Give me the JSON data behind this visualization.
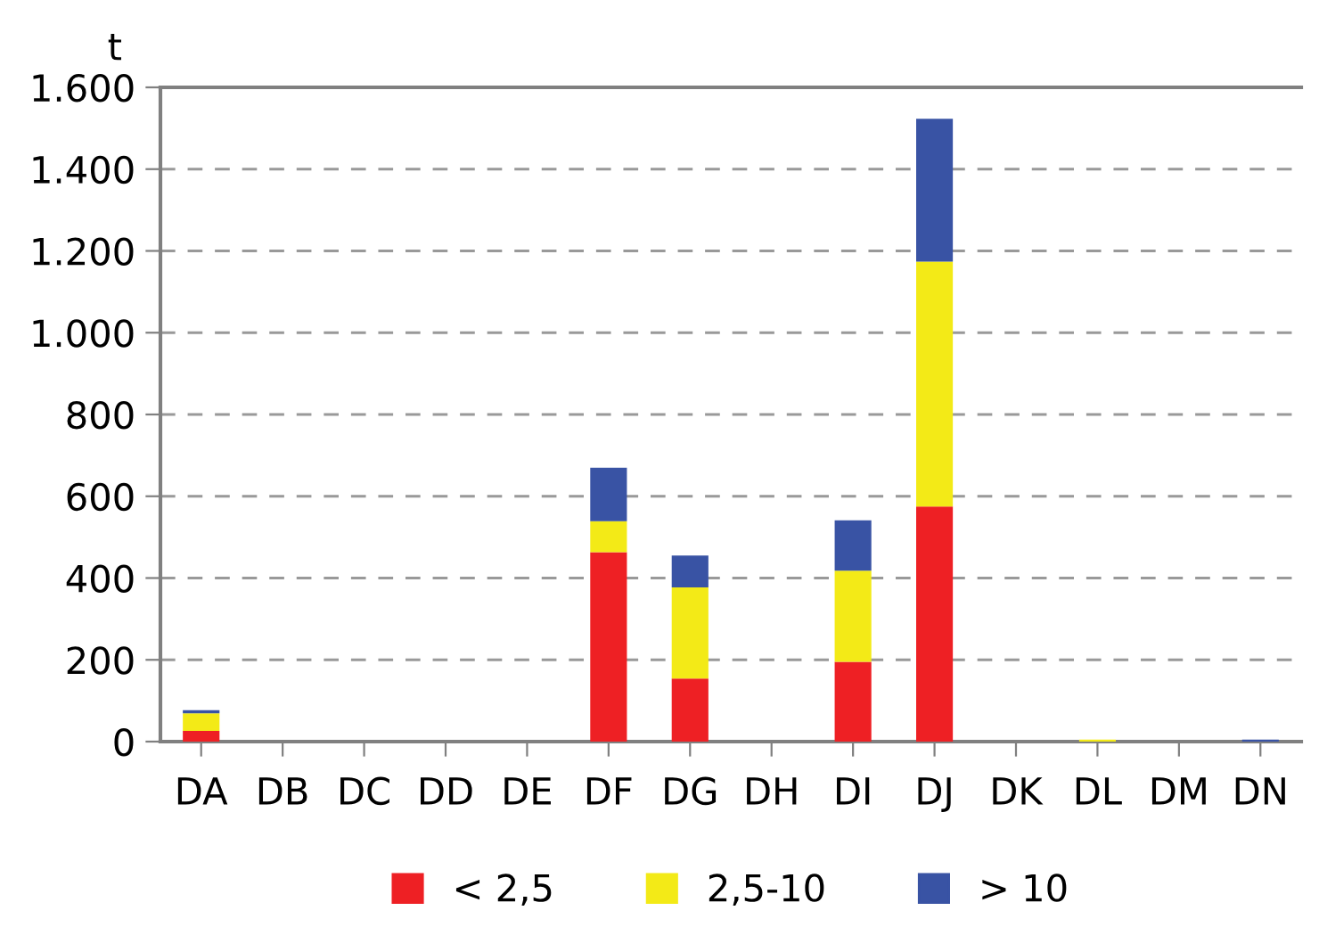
{
  "chart_data": {
    "type": "bar",
    "stacked": true,
    "ylabel": "t",
    "categories": [
      "DA",
      "DB",
      "DC",
      "DD",
      "DE",
      "DF",
      "DG",
      "DH",
      "DI",
      "DJ",
      "DK",
      "DL",
      "DM",
      "DN"
    ],
    "series": [
      {
        "name": "< 2,5",
        "color": "#ee2024",
        "values": [
          26,
          0,
          0,
          0,
          0,
          463,
          154,
          0,
          195,
          575,
          0,
          0,
          0,
          0
        ]
      },
      {
        "name": "2,5-10",
        "color": "#f3ea17",
        "values": [
          43,
          0,
          0,
          0,
          0,
          76,
          223,
          0,
          223,
          599,
          0,
          5,
          0,
          0
        ]
      },
      {
        "name": "> 10",
        "color": "#3953a4",
        "values": [
          8,
          0,
          0,
          0,
          0,
          131,
          78,
          0,
          123,
          349,
          0,
          0,
          0,
          5
        ]
      }
    ],
    "ylim": [
      0,
      1600
    ],
    "yticks": [
      0,
      {
        "value": 200,
        "label": "200"
      },
      {
        "value": 400,
        "label": "400"
      },
      {
        "value": 600,
        "label": "600"
      },
      {
        "value": 800,
        "label": "800"
      },
      {
        "value": 1000,
        "label": "1.000"
      },
      {
        "value": 1200,
        "label": "1.200"
      },
      {
        "value": 1400,
        "label": "1.400"
      },
      {
        "value": 1600,
        "label": "1.600"
      }
    ],
    "grid": "y",
    "legend": "bottom"
  }
}
